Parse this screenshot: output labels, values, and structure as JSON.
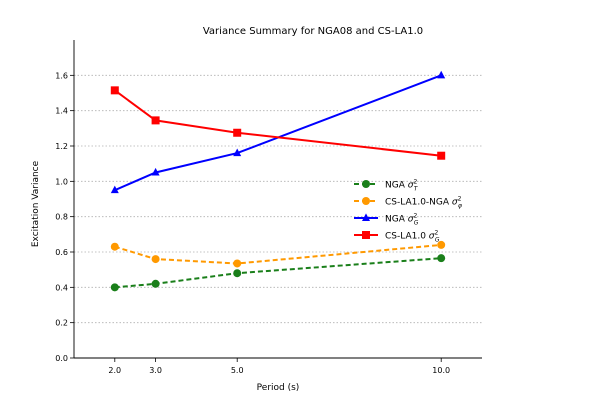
{
  "chart_data": {
    "type": "line",
    "title": "Variance Summary for NGA08 and CS-LA1.0",
    "xlabel": "Period (s)",
    "ylabel": "Excitation Variance",
    "x": [
      2.0,
      3.0,
      5.0,
      10.0
    ],
    "xtick_labels": [
      "2.0",
      "3.0",
      "5.0",
      "10.0"
    ],
    "xlim": [
      1.0,
      11.0
    ],
    "ylim": [
      0.0,
      1.8
    ],
    "yticks": [
      0.0,
      0.2,
      0.4,
      0.6,
      0.8,
      1.0,
      1.2,
      1.4,
      1.6
    ],
    "ytick_labels": [
      "0.0",
      "0.2",
      "0.4",
      "0.6",
      "0.8",
      "1.0",
      "1.2",
      "1.4",
      "1.6"
    ],
    "grid": "horizontal dotted",
    "legend_position": "center-right",
    "series": [
      {
        "name": "NGA",
        "symbol": "σ",
        "sup": "2",
        "sub": "T",
        "values": [
          0.4,
          0.42,
          0.48,
          0.565
        ],
        "color": "#1a7f1a",
        "line_style": "dashed",
        "marker": "circle"
      },
      {
        "name": "CS-LA1.0-NGA",
        "symbol": "σ",
        "sup": "2",
        "sub": "φ",
        "values": [
          0.63,
          0.56,
          0.535,
          0.64
        ],
        "color": "#ff9900",
        "line_style": "dashed",
        "marker": "circle"
      },
      {
        "name": "NGA",
        "symbol": "σ",
        "sup": "2",
        "sub": "G",
        "values": [
          0.95,
          1.05,
          1.16,
          1.6
        ],
        "color": "#0000ff",
        "line_style": "solid",
        "marker": "triangle"
      },
      {
        "name": "CS-LA1.0",
        "symbol": "σ",
        "sup": "2",
        "sub": "G",
        "values": [
          1.515,
          1.345,
          1.275,
          1.145
        ],
        "color": "#ff0000",
        "line_style": "solid",
        "marker": "square"
      }
    ]
  }
}
